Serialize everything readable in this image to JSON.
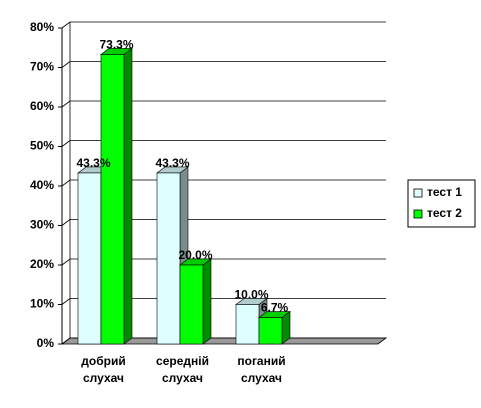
{
  "chart_data": {
    "type": "bar3d",
    "categories": [
      "добрий слухач",
      "середній слухач",
      "поганий слухач"
    ],
    "series": [
      {
        "name": "тест 1",
        "color": "#ddffff",
        "values": [
          43.3,
          43.3,
          10.0
        ],
        "value_labels": [
          "43.3%",
          "43.3%",
          "10.0%"
        ]
      },
      {
        "name": "тест 2",
        "color": "#00ff00",
        "values": [
          73.3,
          20.0,
          6.7
        ],
        "value_labels": [
          "73.3%",
          "20.0%",
          "6.7%"
        ]
      }
    ],
    "ylim": [
      0,
      80
    ],
    "yticks": [
      {
        "value": 0,
        "label": "0%"
      },
      {
        "value": 10,
        "label": "10%"
      },
      {
        "value": 20,
        "label": "20%"
      },
      {
        "value": 30,
        "label": "30%"
      },
      {
        "value": 40,
        "label": "40%"
      },
      {
        "value": 50,
        "label": "50%"
      },
      {
        "value": 60,
        "label": "60%"
      },
      {
        "value": 70,
        "label": "70%"
      },
      {
        "value": 80,
        "label": "80%"
      }
    ],
    "grid": true,
    "legend": "right"
  }
}
